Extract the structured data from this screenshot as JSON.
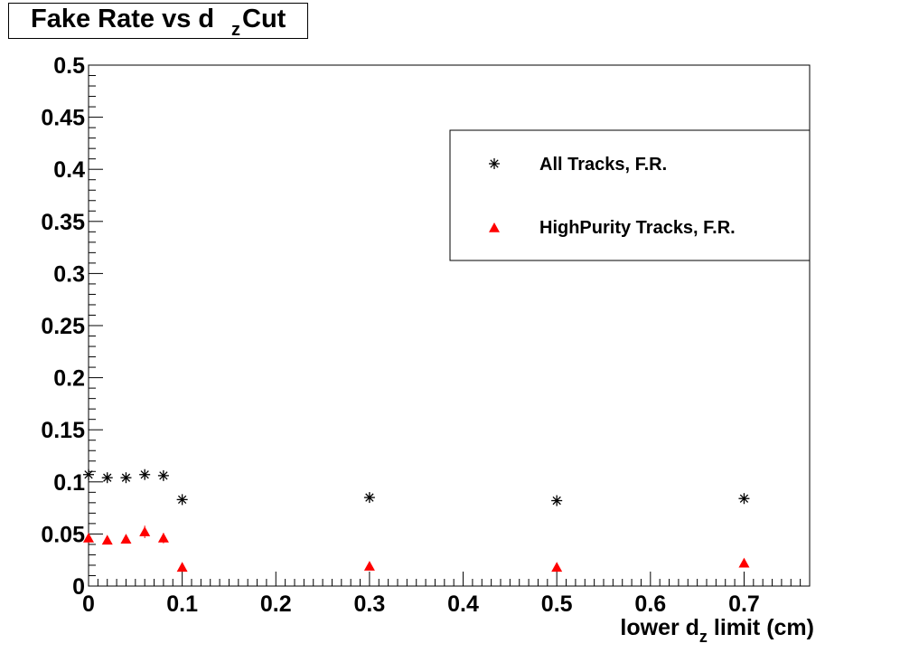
{
  "title": {
    "main": "Fake Rate vs d",
    "sub": "z",
    "tail": "Cut"
  },
  "xlabel": {
    "pre": "lower d",
    "sub": "z",
    "post": " limit (cm)"
  },
  "chart_data": {
    "type": "scatter",
    "xlim": [
      0,
      0.77
    ],
    "ylim": [
      0,
      0.5
    ],
    "xticks": [
      0,
      0.1,
      0.2,
      0.3,
      0.4,
      0.5,
      0.6,
      0.7
    ],
    "xtick_labels": [
      "0",
      "0.1",
      "0.2",
      "0.3",
      "0.4",
      "0.5",
      "0.6",
      "0.7"
    ],
    "yticks": [
      0,
      0.05,
      0.1,
      0.15,
      0.2,
      0.25,
      0.3,
      0.35,
      0.4,
      0.45,
      0.5
    ],
    "ytick_labels": [
      "0",
      "0.05",
      "0.1",
      "0.15",
      "0.2",
      "0.25",
      "0.3",
      "0.35",
      "0.4",
      "0.45",
      "0.5"
    ],
    "grid": false,
    "legend_position": "top-right",
    "series": [
      {
        "name": "All Tracks, F.R.",
        "marker": "star",
        "color": "#000000",
        "x": [
          0,
          0.02,
          0.04,
          0.06,
          0.08,
          0.1,
          0.3,
          0.5,
          0.7
        ],
        "y": [
          0.107,
          0.104,
          0.104,
          0.107,
          0.106,
          0.083,
          0.085,
          0.082,
          0.084
        ],
        "err": [
          0.003,
          0.003,
          0.003,
          0.004,
          0.004,
          0.002,
          0.002,
          0.002,
          0.002
        ]
      },
      {
        "name": "HighPurity Tracks, F.R.",
        "marker": "triangle",
        "color": "#ff0000",
        "x": [
          0,
          0.02,
          0.04,
          0.06,
          0.08,
          0.1,
          0.3,
          0.5,
          0.7
        ],
        "y": [
          0.046,
          0.044,
          0.045,
          0.052,
          0.046,
          0.018,
          0.019,
          0.018,
          0.022
        ],
        "err": [
          0.003,
          0.003,
          0.004,
          0.006,
          0.005,
          0.002,
          0.002,
          0.002,
          0.002
        ]
      }
    ]
  }
}
